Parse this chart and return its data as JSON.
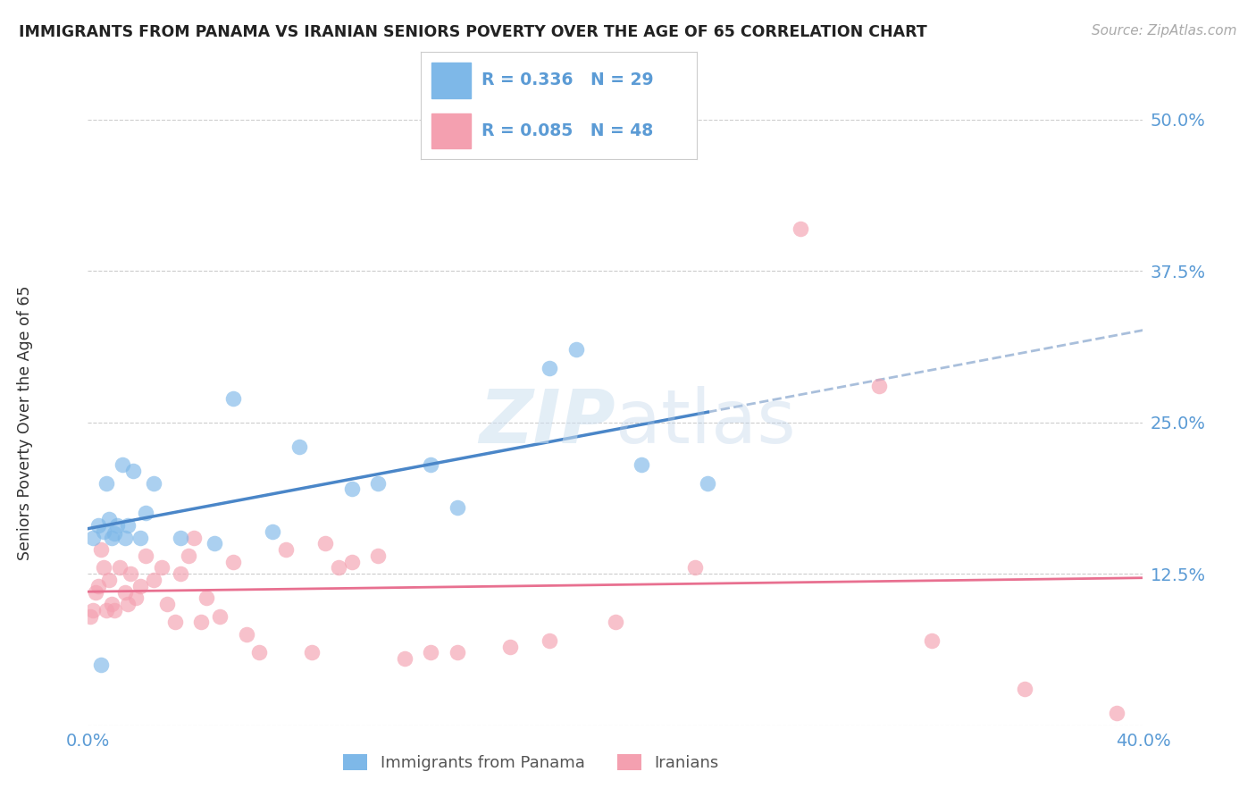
{
  "title": "IMMIGRANTS FROM PANAMA VS IRANIAN SENIORS POVERTY OVER THE AGE OF 65 CORRELATION CHART",
  "source": "Source: ZipAtlas.com",
  "ylabel": "Seniors Poverty Over the Age of 65",
  "xlim": [
    0.0,
    0.4
  ],
  "ylim": [
    0.0,
    0.5
  ],
  "yticks": [
    0.0,
    0.125,
    0.25,
    0.375,
    0.5
  ],
  "ytick_labels": [
    "",
    "12.5%",
    "25.0%",
    "37.5%",
    "50.0%"
  ],
  "xticks": [
    0.0,
    0.1,
    0.2,
    0.3,
    0.4
  ],
  "xtick_labels": [
    "0.0%",
    "",
    "",
    "",
    "40.0%"
  ],
  "color_panama": "#7eb8e8",
  "color_iran": "#f4a0b0",
  "color_line_panama": "#4a86c8",
  "color_line_iran": "#e87090",
  "color_dashed": "#a0b8d8",
  "color_text_blue": "#5b9bd5",
  "color_axis_label": "#333333",
  "panama_x": [
    0.002,
    0.004,
    0.005,
    0.006,
    0.007,
    0.008,
    0.009,
    0.01,
    0.011,
    0.013,
    0.014,
    0.015,
    0.017,
    0.02,
    0.022,
    0.025,
    0.035,
    0.048,
    0.055,
    0.07,
    0.08,
    0.1,
    0.11,
    0.13,
    0.14,
    0.175,
    0.185,
    0.21,
    0.235
  ],
  "panama_y": [
    0.155,
    0.165,
    0.05,
    0.16,
    0.2,
    0.17,
    0.155,
    0.158,
    0.165,
    0.215,
    0.155,
    0.165,
    0.21,
    0.155,
    0.175,
    0.2,
    0.155,
    0.15,
    0.27,
    0.16,
    0.23,
    0.195,
    0.2,
    0.215,
    0.18,
    0.295,
    0.31,
    0.215,
    0.2
  ],
  "iran_x": [
    0.001,
    0.002,
    0.003,
    0.004,
    0.005,
    0.006,
    0.007,
    0.008,
    0.009,
    0.01,
    0.012,
    0.014,
    0.015,
    0.016,
    0.018,
    0.02,
    0.022,
    0.025,
    0.028,
    0.03,
    0.033,
    0.035,
    0.038,
    0.04,
    0.043,
    0.045,
    0.05,
    0.055,
    0.06,
    0.065,
    0.075,
    0.085,
    0.09,
    0.095,
    0.1,
    0.11,
    0.12,
    0.13,
    0.14,
    0.16,
    0.175,
    0.2,
    0.23,
    0.27,
    0.3,
    0.32,
    0.355,
    0.39
  ],
  "iran_y": [
    0.09,
    0.095,
    0.11,
    0.115,
    0.145,
    0.13,
    0.095,
    0.12,
    0.1,
    0.095,
    0.13,
    0.11,
    0.1,
    0.125,
    0.105,
    0.115,
    0.14,
    0.12,
    0.13,
    0.1,
    0.085,
    0.125,
    0.14,
    0.155,
    0.085,
    0.105,
    0.09,
    0.135,
    0.075,
    0.06,
    0.145,
    0.06,
    0.15,
    0.13,
    0.135,
    0.14,
    0.055,
    0.06,
    0.06,
    0.065,
    0.07,
    0.085,
    0.13,
    0.41,
    0.28,
    0.07,
    0.03,
    0.01
  ],
  "watermark_zip": "ZIP",
  "watermark_atlas": "atlas",
  "background_color": "#ffffff",
  "legend_r1": "R = 0.336",
  "legend_n1": "N = 29",
  "legend_r2": "R = 0.085",
  "legend_n2": "N = 48"
}
